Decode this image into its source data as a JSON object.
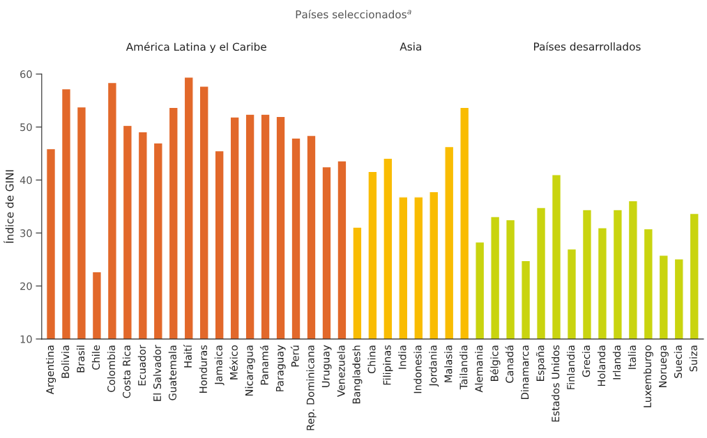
{
  "chart_data": {
    "type": "bar",
    "title": "Países seleccionados$^{a}$",
    "ylabel": "Índice de GINI",
    "annotations": [
      "América Latina y el Caribe",
      "Asia",
      "Países desarrollados"
    ],
    "categories": [
      "Argentina",
      "Bolivia",
      "Brasil",
      "Chile",
      "Colombia",
      "Costa Rica",
      "Ecuador",
      "El Salvador",
      "Guatemala",
      "Haití",
      "Honduras",
      "Jamaica",
      "México",
      "Nicaragua",
      "Panamá",
      "Paraguay",
      "Perú",
      "Rep. Dominicana",
      "Uruguay",
      "Venezuela",
      "Bangladesh",
      "China",
      "Filipinas",
      "India",
      "Indonesia",
      "Jordania",
      "Malasia",
      "Tailandia",
      "Alemania",
      "Bélgica",
      "Canadá",
      "Dinamarca",
      "España",
      "Estados Unidos",
      "Finlandia",
      "Grecia",
      "Holanda",
      "Irlanda",
      "Italia",
      "Luxemburgo",
      "Noruega",
      "Suecia",
      "Suiza"
    ],
    "values": [
      45.9,
      57.2,
      53.8,
      22.7,
      58.4,
      50.3,
      49.1,
      47.0,
      53.7,
      59.4,
      57.7,
      45.5,
      51.9,
      52.4,
      52.4,
      52.0,
      47.9,
      48.4,
      42.5,
      43.6,
      31.1,
      41.6,
      44.1,
      36.8,
      36.8,
      37.8,
      46.3,
      53.7,
      28.3,
      33.1,
      32.5,
      24.8,
      34.8,
      41.0,
      27.0,
      34.4,
      31.0,
      34.4,
      36.1,
      30.8,
      25.8,
      25.1,
      33.7
    ],
    "colors": [
      "#e2682a",
      "#e2682a",
      "#e2682a",
      "#e2682a",
      "#e2682a",
      "#e2682a",
      "#e2682a",
      "#e2682a",
      "#e2682a",
      "#e2682a",
      "#e2682a",
      "#e2682a",
      "#e2682a",
      "#e2682a",
      "#e2682a",
      "#e2682a",
      "#e2682a",
      "#e2682a",
      "#e2682a",
      "#e2682a",
      "#f9bc02",
      "#f9bc02",
      "#f9bc02",
      "#f9bc02",
      "#f9bc02",
      "#f9bc02",
      "#f9bc02",
      "#f9bc02",
      "#c9d40f",
      "#c9d40f",
      "#c9d40f",
      "#c9d40f",
      "#c9d40f",
      "#c9d40f",
      "#c9d40f",
      "#c9d40f",
      "#c9d40f",
      "#c9d40f",
      "#c9d40f",
      "#c9d40f",
      "#c9d40f",
      "#c9d40f",
      "#c9d40f"
    ],
    "ylim": [
      10,
      60
    ],
    "yticks": [
      10,
      20,
      30,
      40,
      50,
      60
    ],
    "grid": false,
    "legend": false
  }
}
